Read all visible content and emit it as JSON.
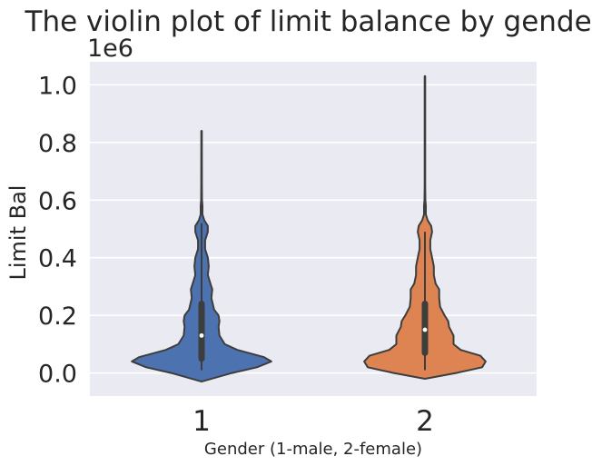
{
  "chart_data": {
    "type": "violin",
    "title": "The violin plot of limit balance by gender",
    "xlabel": "Gender (1-male, 2-female)",
    "ylabel": "Limit Bal",
    "y_multiplier_label": "1e6",
    "ylim": [
      -0.08,
      1.08
    ],
    "yticks": [
      0.0,
      0.2,
      0.4,
      0.6,
      0.8,
      1.0
    ],
    "ytick_labels": [
      "0.0",
      "0.2",
      "0.4",
      "0.6",
      "0.8",
      "1.0"
    ],
    "grid": true,
    "categories": [
      "1",
      "2"
    ],
    "colors": {
      "plot_background": "#eaeaf2",
      "grid": "#ffffff",
      "outline": "#3d3d3d",
      "text": "#262626",
      "median_marker": "#ffffff"
    },
    "series": [
      {
        "category": "1",
        "color": "#4c72b0",
        "min": 0.01,
        "q1": 0.05,
        "median": 0.13,
        "q3": 0.24,
        "max": 0.84,
        "whisker_low": 0.01,
        "whisker_high": 0.52,
        "density": [
          [
            -0.03,
            0.0
          ],
          [
            0.0,
            0.34
          ],
          [
            0.02,
            0.62
          ],
          [
            0.04,
            0.78
          ],
          [
            0.055,
            0.7
          ],
          [
            0.08,
            0.4
          ],
          [
            0.1,
            0.26
          ],
          [
            0.13,
            0.2
          ],
          [
            0.16,
            0.19
          ],
          [
            0.18,
            0.2
          ],
          [
            0.2,
            0.19
          ],
          [
            0.22,
            0.14
          ],
          [
            0.26,
            0.11
          ],
          [
            0.29,
            0.12
          ],
          [
            0.31,
            0.1
          ],
          [
            0.34,
            0.07
          ],
          [
            0.37,
            0.08
          ],
          [
            0.4,
            0.07
          ],
          [
            0.43,
            0.04
          ],
          [
            0.46,
            0.04
          ],
          [
            0.49,
            0.07
          ],
          [
            0.51,
            0.07
          ],
          [
            0.53,
            0.03
          ],
          [
            0.55,
            0.01
          ],
          [
            0.58,
            0.01
          ],
          [
            0.6,
            0.005
          ],
          [
            0.65,
            0.004
          ],
          [
            0.84,
            0.003
          ]
        ]
      },
      {
        "category": "2",
        "color": "#dd8452",
        "min": 0.01,
        "q1": 0.07,
        "median": 0.15,
        "q3": 0.24,
        "max": 1.03,
        "whisker_low": 0.01,
        "whisker_high": 0.49,
        "density": [
          [
            -0.02,
            0.0
          ],
          [
            0.0,
            0.35
          ],
          [
            0.02,
            0.64
          ],
          [
            0.04,
            0.68
          ],
          [
            0.06,
            0.62
          ],
          [
            0.08,
            0.4
          ],
          [
            0.1,
            0.32
          ],
          [
            0.13,
            0.32
          ],
          [
            0.16,
            0.27
          ],
          [
            0.18,
            0.26
          ],
          [
            0.2,
            0.22
          ],
          [
            0.23,
            0.17
          ],
          [
            0.26,
            0.16
          ],
          [
            0.29,
            0.16
          ],
          [
            0.31,
            0.12
          ],
          [
            0.34,
            0.1
          ],
          [
            0.37,
            0.1
          ],
          [
            0.4,
            0.08
          ],
          [
            0.43,
            0.06
          ],
          [
            0.46,
            0.06
          ],
          [
            0.49,
            0.08
          ],
          [
            0.51,
            0.07
          ],
          [
            0.53,
            0.03
          ],
          [
            0.55,
            0.01
          ],
          [
            0.58,
            0.01
          ],
          [
            0.6,
            0.005
          ],
          [
            0.65,
            0.003
          ],
          [
            1.03,
            0.003
          ]
        ]
      }
    ]
  }
}
